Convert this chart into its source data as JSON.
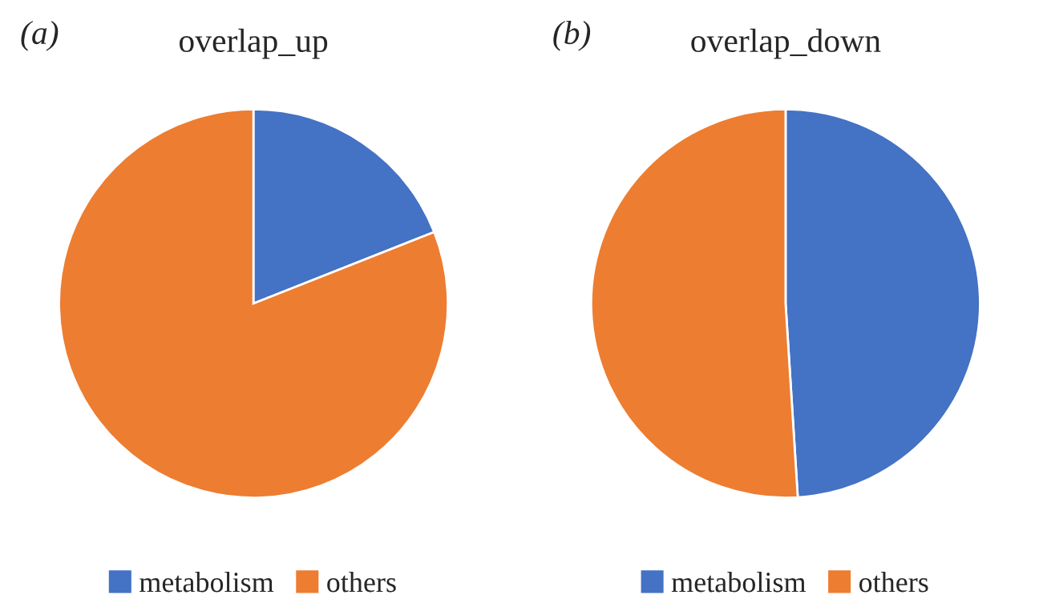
{
  "chart_data": [
    {
      "type": "pie",
      "title": "overlap_up",
      "annotations": [
        "(a)"
      ],
      "categories": [
        "metabolism",
        "others"
      ],
      "values": [
        19,
        81
      ],
      "colors": [
        "#4472c4",
        "#ed7d31"
      ],
      "legend": "bottom"
    },
    {
      "type": "pie",
      "title": "overlap_down",
      "annotations": [
        "(b)"
      ],
      "categories": [
        "metabolism",
        "others"
      ],
      "values": [
        49,
        51
      ],
      "colors": [
        "#4472c4",
        "#ed7d31"
      ],
      "legend": "bottom"
    }
  ]
}
